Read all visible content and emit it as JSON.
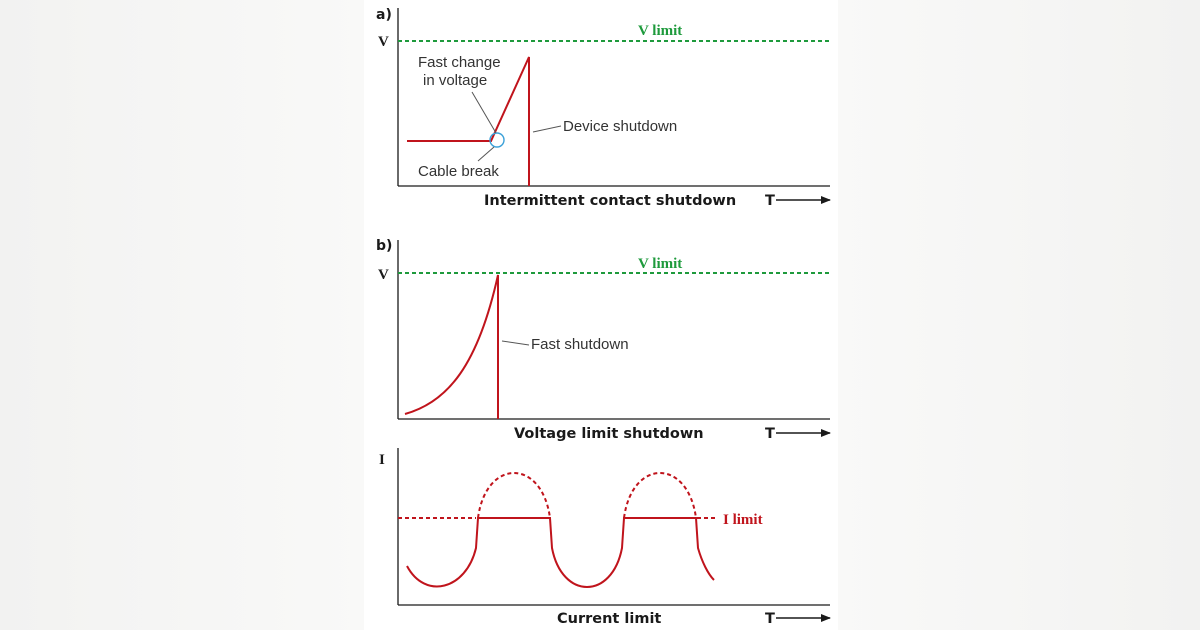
{
  "panels": {
    "a": {
      "letter": "a)",
      "y_axis_label": "V",
      "limit_label": "V limit",
      "annotation_fast_change_line1": "Fast change",
      "annotation_fast_change_line2": "in voltage",
      "annotation_device_shutdown": "Device shutdown",
      "annotation_cable_break": "Cable break",
      "caption": "Intermittent contact shutdown",
      "x_axis_label": "T"
    },
    "b": {
      "letter": "b)",
      "y_axis_label": "V",
      "limit_label": "V limit",
      "annotation_fast_shutdown": "Fast shutdown",
      "caption": "Voltage limit shutdown",
      "x_axis_label": "T"
    },
    "c": {
      "y_axis_label": "I",
      "limit_label": "I limit",
      "caption": "Current limit",
      "x_axis_label": "T"
    }
  },
  "colors": {
    "voltage_limit": "#1e9a3c",
    "signal": "#c0141c",
    "marker_circle": "#3aa0d8",
    "axis": "#1a1a1a"
  }
}
